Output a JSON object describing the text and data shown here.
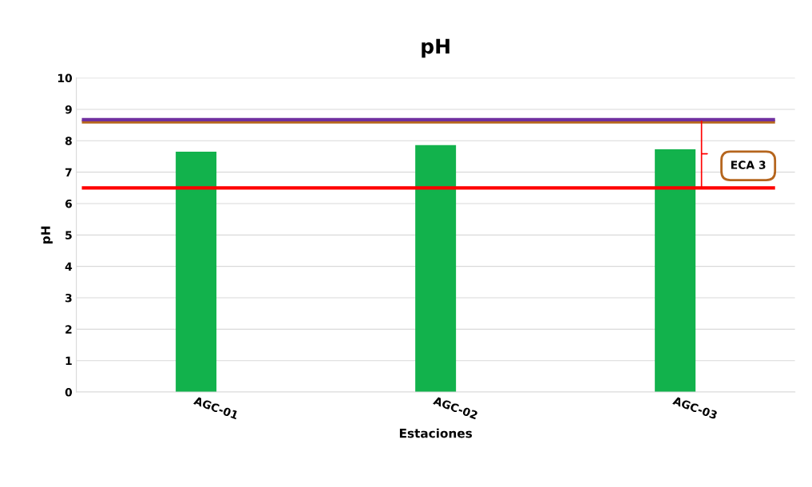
{
  "chart_data": {
    "type": "bar",
    "title": "pH",
    "xlabel": "Estaciones",
    "ylabel": "pH",
    "categories": [
      "AGC-01",
      "AGC-02",
      "AGC-03"
    ],
    "values": [
      7.65,
      7.86,
      7.73
    ],
    "color": "#12b24c",
    "ylim": [
      0,
      10
    ],
    "yticks": [
      0,
      1,
      2,
      3,
      4,
      5,
      6,
      7,
      8,
      9,
      10
    ],
    "grid": "y",
    "ref_lines": [
      {
        "axis": "y",
        "value": 8.6,
        "color": "#b5651d"
      },
      {
        "axis": "y",
        "value": 8.67,
        "color": "#7030a0"
      },
      {
        "axis": "y",
        "value": 6.5,
        "color": "#ff0000"
      }
    ],
    "annotations": [
      "ECA 3"
    ]
  }
}
